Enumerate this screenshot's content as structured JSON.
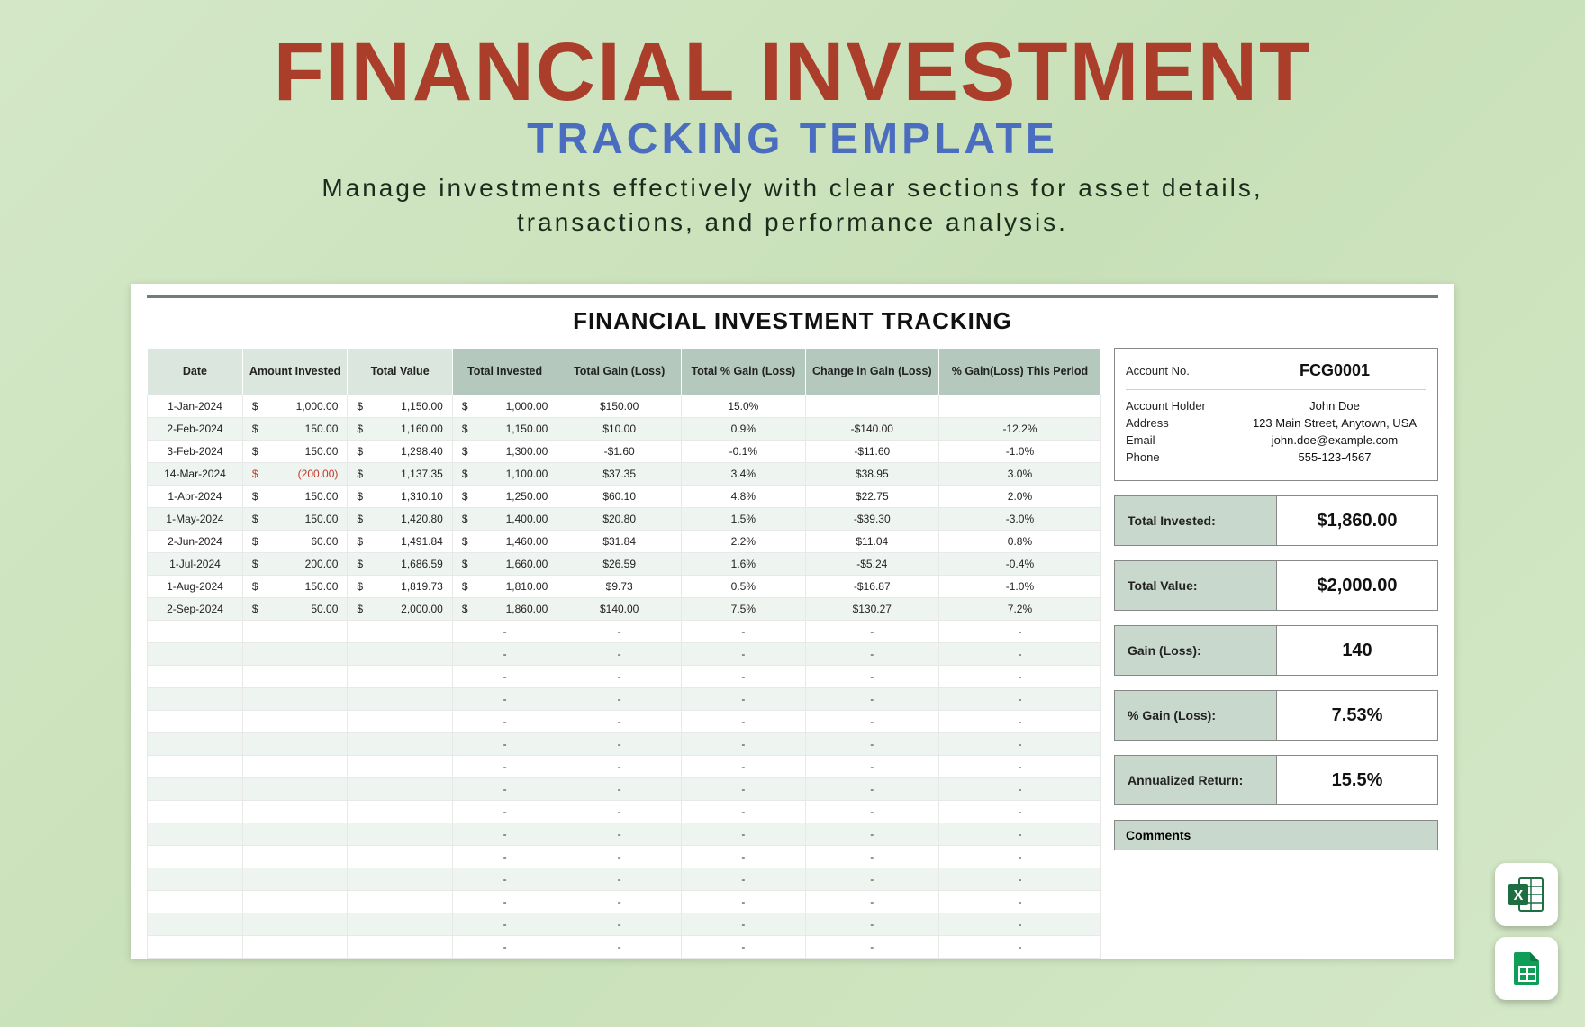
{
  "header": {
    "title_main": "FINANCIAL INVESTMENT",
    "title_sub": "TRACKING TEMPLATE",
    "subtitle_l1": "Manage investments effectively with clear sections for asset details,",
    "subtitle_l2": "transactions, and performance analysis."
  },
  "sheet": {
    "title": "FINANCIAL INVESTMENT TRACKING",
    "columns": [
      "Date",
      "Amount Invested",
      "Total Value",
      "Total Invested",
      "Total Gain (Loss)",
      "Total % Gain (Loss)",
      "Change in Gain (Loss)",
      "% Gain(Loss) This Period"
    ],
    "col_widths_pct": [
      10,
      11,
      11,
      11,
      13,
      13,
      14,
      17
    ],
    "light_header_idx": [
      0,
      1,
      2
    ],
    "rows": [
      {
        "date": "1-Jan-2024",
        "amt": "1,000.00",
        "amt_neg": false,
        "tv": "1,150.00",
        "ti": "1,000.00",
        "tg": "$150.00",
        "tg_neg": false,
        "tpg": "15.0%",
        "tpg_neg": false,
        "cg": "",
        "cg_neg": false,
        "pgp": "",
        "pgp_neg": false
      },
      {
        "date": "2-Feb-2024",
        "amt": "150.00",
        "amt_neg": false,
        "tv": "1,160.00",
        "ti": "1,150.00",
        "tg": "$10.00",
        "tg_neg": false,
        "tpg": "0.9%",
        "tpg_neg": false,
        "cg": "-$140.00",
        "cg_neg": true,
        "pgp": "-12.2%",
        "pgp_neg": true
      },
      {
        "date": "3-Feb-2024",
        "amt": "150.00",
        "amt_neg": false,
        "tv": "1,298.40",
        "ti": "1,300.00",
        "tg": "-$1.60",
        "tg_neg": true,
        "tpg": "-0.1%",
        "tpg_neg": true,
        "cg": "-$11.60",
        "cg_neg": true,
        "pgp": "-1.0%",
        "pgp_neg": true
      },
      {
        "date": "14-Mar-2024",
        "amt": "(200.00)",
        "amt_neg": true,
        "tv": "1,137.35",
        "ti": "1,100.00",
        "tg": "$37.35",
        "tg_neg": false,
        "tpg": "3.4%",
        "tpg_neg": false,
        "cg": "$38.95",
        "cg_neg": false,
        "pgp": "3.0%",
        "pgp_neg": false
      },
      {
        "date": "1-Apr-2024",
        "amt": "150.00",
        "amt_neg": false,
        "tv": "1,310.10",
        "ti": "1,250.00",
        "tg": "$60.10",
        "tg_neg": false,
        "tpg": "4.8%",
        "tpg_neg": false,
        "cg": "$22.75",
        "cg_neg": false,
        "pgp": "2.0%",
        "pgp_neg": false
      },
      {
        "date": "1-May-2024",
        "amt": "150.00",
        "amt_neg": false,
        "tv": "1,420.80",
        "ti": "1,400.00",
        "tg": "$20.80",
        "tg_neg": false,
        "tpg": "1.5%",
        "tpg_neg": false,
        "cg": "-$39.30",
        "cg_neg": true,
        "pgp": "-3.0%",
        "pgp_neg": true
      },
      {
        "date": "2-Jun-2024",
        "amt": "60.00",
        "amt_neg": false,
        "tv": "1,491.84",
        "ti": "1,460.00",
        "tg": "$31.84",
        "tg_neg": false,
        "tpg": "2.2%",
        "tpg_neg": false,
        "cg": "$11.04",
        "cg_neg": false,
        "pgp": "0.8%",
        "pgp_neg": false
      },
      {
        "date": "1-Jul-2024",
        "amt": "200.00",
        "amt_neg": false,
        "tv": "1,686.59",
        "ti": "1,660.00",
        "tg": "$26.59",
        "tg_neg": false,
        "tpg": "1.6%",
        "tpg_neg": false,
        "cg": "-$5.24",
        "cg_neg": true,
        "pgp": "-0.4%",
        "pgp_neg": true
      },
      {
        "date": "1-Aug-2024",
        "amt": "150.00",
        "amt_neg": false,
        "tv": "1,819.73",
        "ti": "1,810.00",
        "tg": "$9.73",
        "tg_neg": false,
        "tpg": "0.5%",
        "tpg_neg": false,
        "cg": "-$16.87",
        "cg_neg": true,
        "pgp": "-1.0%",
        "pgp_neg": true
      },
      {
        "date": "2-Sep-2024",
        "amt": "50.00",
        "amt_neg": false,
        "tv": "2,000.00",
        "ti": "1,860.00",
        "tg": "$140.00",
        "tg_neg": false,
        "tpg": "7.5%",
        "tpg_neg": false,
        "cg": "$130.27",
        "cg_neg": false,
        "pgp": "7.2%",
        "pgp_neg": false
      }
    ],
    "empty_row_count": 15,
    "dash": "-"
  },
  "account": {
    "labels": {
      "no": "Account No.",
      "holder": "Account Holder",
      "address": "Address",
      "email": "Email",
      "phone": "Phone"
    },
    "no": "FCG0001",
    "holder": "John Doe",
    "address": "123 Main Street, Anytown, USA",
    "email": "john.doe@example.com",
    "phone": "555-123-4567"
  },
  "summary": [
    {
      "label": "Total Invested:",
      "value": "$1,860.00"
    },
    {
      "label": "Total Value:",
      "value": "$2,000.00"
    },
    {
      "label": "Gain (Loss):",
      "value": "140"
    },
    {
      "label": "% Gain (Loss):",
      "value": "7.53%"
    },
    {
      "label": "Annualized Return:",
      "value": "15.5%"
    }
  ],
  "comments_label": "Comments",
  "colors": {
    "bg_from": "#d4e8c8",
    "bg_to": "#c8e0b8",
    "title_main": "#aa3e2a",
    "title_sub": "#4a6dbf",
    "subtitle": "#1d2b1d",
    "header_dark": "#b4c8be",
    "header_light": "#dbe6de",
    "row_alt": "#eef4ef",
    "blue": "#3a66c9",
    "red": "#c0392b",
    "summary_bg": "#c9d8cd",
    "border": "#888888",
    "top_rule": "#6d7f78",
    "excel": "#1d6f42",
    "sheets": "#0f9d58"
  }
}
